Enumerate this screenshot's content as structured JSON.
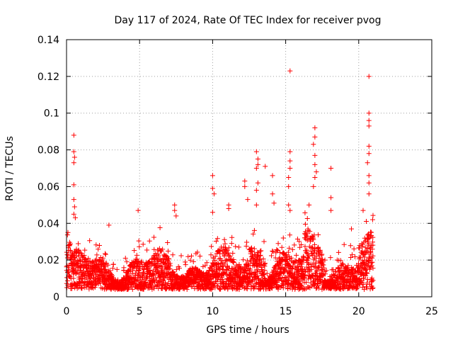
{
  "chart_data": {
    "type": "scatter",
    "title": "Day 117 of 2024, Rate Of TEC Index for receiver pvog",
    "xlabel": "GPS time / hours",
    "ylabel": "ROTI / TECUs",
    "xlim": [
      0,
      25
    ],
    "ylim": [
      0,
      0.14
    ],
    "xticks": [
      0,
      5,
      10,
      15,
      20,
      25
    ],
    "yticks": [
      0,
      0.02,
      0.04,
      0.06,
      0.08,
      0.1,
      0.12,
      0.14
    ],
    "xtick_labels": [
      "0",
      "5",
      "10",
      "15",
      "20",
      "25"
    ],
    "ytick_labels": [
      "0",
      "0.02",
      "0.04",
      "0.06",
      "0.08",
      "0.1",
      "0.12",
      "0.14"
    ],
    "grid": true,
    "marker": "+",
    "color": "#ff0000",
    "data_extent_hours": [
      0,
      21
    ],
    "series": [
      {
        "name": "ROTI",
        "points": [
          [
            0.5,
            0.088
          ],
          [
            0.5,
            0.079
          ],
          [
            0.55,
            0.076
          ],
          [
            0.5,
            0.073
          ],
          [
            0.5,
            0.061
          ],
          [
            0.5,
            0.053
          ],
          [
            0.55,
            0.049
          ],
          [
            0.5,
            0.045
          ],
          [
            0.6,
            0.043
          ],
          [
            2.9,
            0.039
          ],
          [
            4.9,
            0.047
          ],
          [
            7.4,
            0.05
          ],
          [
            7.4,
            0.047
          ],
          [
            7.5,
            0.044
          ],
          [
            10.0,
            0.066
          ],
          [
            10.0,
            0.059
          ],
          [
            10.1,
            0.056
          ],
          [
            10.0,
            0.046
          ],
          [
            11.1,
            0.05
          ],
          [
            11.1,
            0.048
          ],
          [
            12.2,
            0.063
          ],
          [
            12.2,
            0.06
          ],
          [
            12.4,
            0.053
          ],
          [
            13.0,
            0.079
          ],
          [
            13.1,
            0.075
          ],
          [
            13.1,
            0.072
          ],
          [
            13.0,
            0.07
          ],
          [
            13.1,
            0.062
          ],
          [
            13.0,
            0.058
          ],
          [
            13.0,
            0.05
          ],
          [
            13.6,
            0.071
          ],
          [
            14.1,
            0.066
          ],
          [
            14.1,
            0.056
          ],
          [
            14.2,
            0.051
          ],
          [
            15.3,
            0.123
          ],
          [
            15.3,
            0.079
          ],
          [
            15.3,
            0.074
          ],
          [
            15.3,
            0.07
          ],
          [
            15.2,
            0.065
          ],
          [
            15.2,
            0.06
          ],
          [
            15.2,
            0.05
          ],
          [
            15.3,
            0.047
          ],
          [
            17.0,
            0.092
          ],
          [
            17.0,
            0.087
          ],
          [
            16.9,
            0.083
          ],
          [
            17.0,
            0.077
          ],
          [
            17.0,
            0.072
          ],
          [
            17.1,
            0.068
          ],
          [
            17.0,
            0.065
          ],
          [
            16.9,
            0.06
          ],
          [
            16.6,
            0.05
          ],
          [
            18.1,
            0.07
          ],
          [
            18.1,
            0.054
          ],
          [
            18.1,
            0.047
          ],
          [
            19.5,
            0.037
          ],
          [
            20.3,
            0.047
          ],
          [
            20.7,
            0.12
          ],
          [
            20.7,
            0.1
          ],
          [
            20.7,
            0.096
          ],
          [
            20.7,
            0.093
          ],
          [
            20.7,
            0.082
          ],
          [
            20.7,
            0.078
          ],
          [
            20.6,
            0.073
          ],
          [
            20.7,
            0.066
          ],
          [
            20.7,
            0.062
          ],
          [
            20.7,
            0.056
          ]
        ]
      }
    ]
  }
}
